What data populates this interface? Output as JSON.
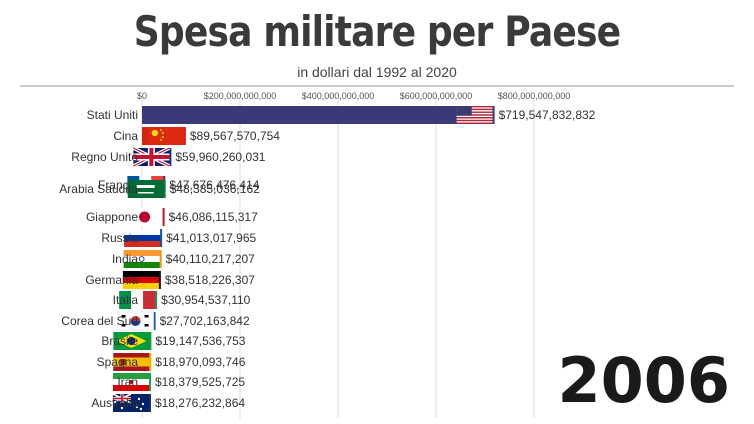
{
  "header": {
    "title": "Spesa militare per Paese",
    "subtitle": "in dollari dal 1992 al 2020",
    "year": "2006"
  },
  "chart_data": {
    "type": "bar",
    "orientation": "horizontal",
    "title": "Spesa militare per Paese",
    "subtitle": "in dollari dal 1992 al 2020",
    "year": "2006",
    "xlim": [
      0,
      850000000000
    ],
    "x_ticks": [
      0,
      200000000000,
      400000000000,
      600000000000,
      800000000000
    ],
    "x_tick_labels": [
      "$0",
      "$200,000,000,000",
      "$400,000,000,000",
      "$600,000,000,000",
      "$800,000,000,000"
    ],
    "grid": true,
    "categories": [
      "Stati Uniti",
      "Cina",
      "Regno Unito",
      "Francia",
      "Arabia Saudita",
      "Giappone",
      "Russia",
      "India",
      "Germania",
      "Italia",
      "Corea del Sud",
      "Brasile",
      "Spagna",
      "Iran",
      "Australia"
    ],
    "values": [
      719547832832,
      89567570754,
      59960260031,
      47676476414,
      48385036162,
      46086115317,
      41013017965,
      40110217207,
      38518226307,
      30954537110,
      27702163842,
      19147536753,
      18970093746,
      18379525725,
      18276232864
    ],
    "value_labels": [
      "$719,547,832,832",
      "$89,567,570,754",
      "$59,960,260,031",
      "$47,676,476,414",
      "$48,385,036,162",
      "$46,086,115,317",
      "$41,013,017,965",
      "$40,110,217,207",
      "$38,518,226,307",
      "$30,954,537,110",
      "$27,702,163,842",
      "$19,147,536,753",
      "$18,970,093,746",
      "$18,379,525,725",
      "$18,276,232,864"
    ],
    "bar_colors": [
      "#3a3a78",
      "#d62411",
      "#1a2e66",
      "#1f3f9c",
      "#1b7a3c",
      "#c8102e",
      "#1c4fa8",
      "#ff8c1a",
      "#111111",
      "#1a9a4a",
      "#1f57b0",
      "#1d9a3a",
      "#e8b400",
      "#1aa34a",
      "#1a2e66"
    ],
    "flag_icons": [
      "usa-flag-icon",
      "china-flag-icon",
      "uk-flag-icon",
      "france-flag-icon",
      "saudi-arabia-flag-icon",
      "japan-flag-icon",
      "russia-flag-icon",
      "india-flag-icon",
      "germany-flag-icon",
      "italy-flag-icon",
      "south-korea-flag-icon",
      "brazil-flag-icon",
      "spain-flag-icon",
      "iran-flag-icon",
      "australia-flag-icon"
    ]
  }
}
